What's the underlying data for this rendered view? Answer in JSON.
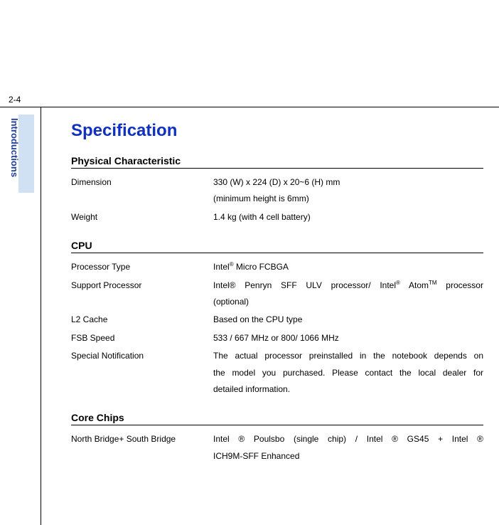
{
  "page_number": "2-4",
  "side_tab": "Introductions",
  "title": "Specification",
  "sections": {
    "physical": {
      "heading": "Physical Characteristic",
      "rows": {
        "dimension": {
          "label": "Dimension",
          "line1": "330 (W) x 224 (D) x 20~6 (H) mm",
          "line2": "(minimum height is 6mm)"
        },
        "weight": {
          "label": "Weight",
          "value": "1.4 kg (with 4 cell battery)"
        }
      }
    },
    "cpu": {
      "heading": "CPU",
      "rows": {
        "proc_type": {
          "label": "Processor Type",
          "prefix": "Intel",
          "sup": "®",
          "suffix": " Micro FCBGA"
        },
        "support_proc": {
          "label": "Support Processor",
          "l1a": "Intel® Penryn SFF ULV processor/ Intel",
          "l1sup1": "®",
          "l1b": " Atom",
          "l1sup2": "TM",
          "l1c": " processor",
          "l2": "(optional)"
        },
        "l2cache": {
          "label": "L2 Cache",
          "value": "Based on the CPU type"
        },
        "fsb": {
          "label": "FSB Speed",
          "value": "533 / 667 MHz or 800/ 1066 MHz"
        },
        "special": {
          "label": "Special Notification",
          "l1": "The actual processor preinstalled in the notebook depends on",
          "l2": "the model you purchased.   Please contact the local dealer for",
          "l3": "detailed information."
        }
      }
    },
    "core": {
      "heading": "Core Chips",
      "rows": {
        "bridge": {
          "label": "North Bridge+ South Bridge",
          "l1": "Intel ® Poulsbo (single chip) / Intel ® GS45 + Intel ®",
          "l2": "ICH9M-SFF Enhanced"
        }
      }
    }
  }
}
